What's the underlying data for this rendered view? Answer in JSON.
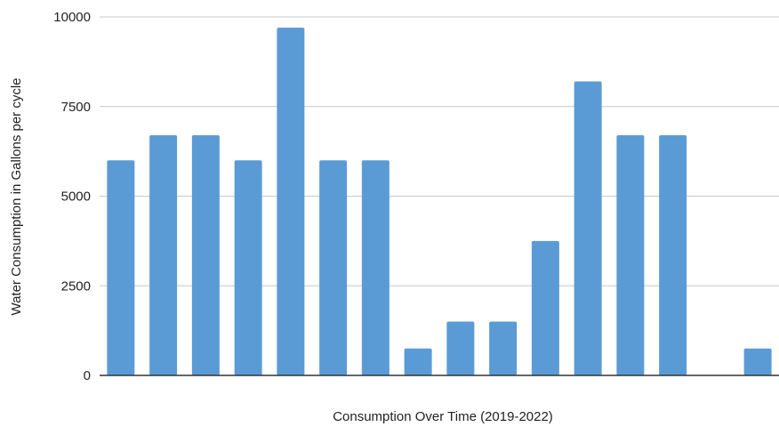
{
  "chart_data": {
    "type": "bar",
    "title": "",
    "xlabel": "Consumption Over Time (2019-2022)",
    "ylabel": "Water Consumption in Gallons per cycle",
    "ylim": [
      0,
      10000
    ],
    "yticks": [
      0,
      2500,
      5000,
      7500,
      10000
    ],
    "grid": true,
    "bar_color": "#5b9bd5",
    "values": [
      6000,
      6700,
      6700,
      6000,
      9700,
      6000,
      6000,
      750,
      1500,
      1500,
      3750,
      8200,
      6700,
      6700,
      0,
      750
    ]
  }
}
